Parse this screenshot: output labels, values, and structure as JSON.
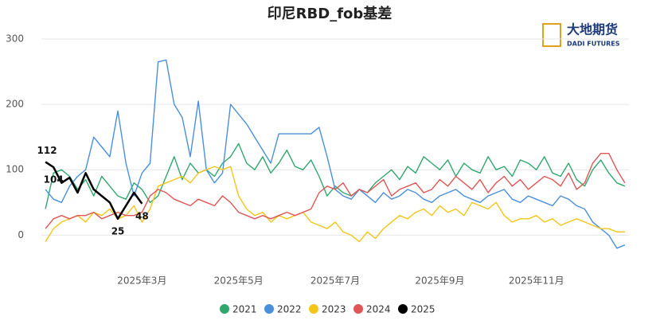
{
  "logo": {
    "name": "大地期货",
    "sub": "DADI FUTURES"
  },
  "chart_data": {
    "type": "line",
    "title": "印尼RBD_fob基差",
    "categories": [
      null,
      null,
      null,
      null,
      null,
      null,
      null,
      null,
      null,
      null,
      null,
      null,
      "2025年3月",
      null,
      null,
      null,
      null,
      null,
      null,
      null,
      null,
      null,
      null,
      null,
      "2025年5月",
      null,
      null,
      null,
      null,
      null,
      null,
      null,
      null,
      null,
      null,
      null,
      "2025年7月",
      null,
      null,
      null,
      null,
      null,
      null,
      null,
      null,
      null,
      null,
      null,
      null,
      "2025年9月",
      null,
      null,
      null,
      null,
      null,
      null,
      null,
      null,
      null,
      null,
      null,
      "2025年11月",
      null,
      null,
      null,
      null,
      null,
      null,
      null,
      null,
      null,
      null,
      null
    ],
    "ylim": [
      -30,
      300
    ],
    "yticks": [
      0,
      100,
      200,
      300
    ],
    "grid": true,
    "legend": "bottom",
    "series": [
      {
        "name": "2021",
        "color": "#2fa86e",
        "values": [
          40,
          95,
          100,
          90,
          70,
          85,
          60,
          90,
          75,
          60,
          55,
          80,
          70,
          50,
          60,
          90,
          120,
          85,
          110,
          95,
          100,
          90,
          110,
          120,
          140,
          110,
          100,
          120,
          95,
          110,
          130,
          105,
          100,
          115,
          90,
          60,
          75,
          65,
          60,
          70,
          65,
          80,
          90,
          100,
          85,
          105,
          95,
          120,
          110,
          100,
          115,
          90,
          110,
          100,
          95,
          120,
          100,
          105,
          90,
          115,
          110,
          100,
          120,
          95,
          90,
          110,
          85,
          75,
          100,
          115,
          95,
          80,
          75
        ]
      },
      {
        "name": "2022",
        "color": "#4a8fdc",
        "values": [
          70,
          55,
          50,
          75,
          90,
          100,
          150,
          135,
          120,
          190,
          110,
          60,
          95,
          110,
          265,
          268,
          200,
          180,
          120,
          205,
          100,
          80,
          95,
          200,
          185,
          170,
          150,
          130,
          110,
          155,
          155,
          155,
          155,
          155,
          165,
          120,
          70,
          60,
          55,
          70,
          60,
          50,
          65,
          55,
          60,
          70,
          65,
          55,
          50,
          60,
          65,
          70,
          60,
          55,
          50,
          60,
          65,
          70,
          55,
          50,
          60,
          55,
          50,
          45,
          60,
          55,
          45,
          40,
          20,
          10,
          0,
          -20,
          -15
        ]
      },
      {
        "name": "2023",
        "color": "#f2c618",
        "values": [
          -10,
          10,
          20,
          25,
          30,
          20,
          35,
          30,
          40,
          25,
          30,
          45,
          20,
          40,
          75,
          80,
          85,
          90,
          80,
          95,
          100,
          105,
          100,
          105,
          60,
          40,
          30,
          35,
          20,
          30,
          25,
          30,
          35,
          20,
          15,
          10,
          20,
          5,
          0,
          -10,
          5,
          -5,
          10,
          20,
          30,
          25,
          35,
          40,
          30,
          45,
          35,
          40,
          30,
          50,
          45,
          40,
          50,
          30,
          20,
          25,
          25,
          30,
          20,
          25,
          15,
          20,
          25,
          20,
          15,
          10,
          10,
          5,
          5
        ]
      },
      {
        "name": "2024",
        "color": "#e05656",
        "values": [
          10,
          25,
          30,
          25,
          30,
          30,
          35,
          25,
          30,
          35,
          30,
          30,
          35,
          60,
          70,
          65,
          55,
          50,
          45,
          55,
          50,
          45,
          60,
          50,
          35,
          30,
          25,
          30,
          25,
          30,
          35,
          30,
          35,
          40,
          65,
          75,
          70,
          80,
          60,
          70,
          65,
          75,
          85,
          60,
          70,
          75,
          80,
          65,
          70,
          85,
          75,
          90,
          80,
          70,
          85,
          65,
          80,
          90,
          75,
          85,
          70,
          80,
          90,
          85,
          75,
          95,
          70,
          80,
          110,
          125,
          125,
          100,
          80
        ]
      },
      {
        "name": "2025",
        "color": "#000000",
        "values": [
          112,
          104,
          80,
          88,
          65,
          95,
          70,
          60,
          50,
          25,
          45,
          65,
          48,
          null,
          null,
          null,
          null,
          null,
          null,
          null,
          null,
          null,
          null,
          null,
          null,
          null,
          null,
          null,
          null,
          null,
          null,
          null,
          null,
          null,
          null,
          null,
          null,
          null,
          null,
          null,
          null,
          null,
          null,
          null,
          null,
          null,
          null,
          null,
          null,
          null,
          null,
          null,
          null,
          null,
          null,
          null,
          null,
          null,
          null,
          null,
          null,
          null,
          null,
          null,
          null,
          null,
          null,
          null,
          null,
          null,
          null,
          null,
          null
        ],
        "value_labels": [
          112,
          104,
          null,
          null,
          null,
          null,
          null,
          null,
          null,
          25,
          null,
          null,
          48,
          null,
          null,
          null,
          null,
          null,
          null,
          null,
          null,
          null,
          null,
          null,
          null,
          null,
          null,
          null,
          null,
          null,
          null,
          null,
          null,
          null,
          null,
          null,
          null,
          null,
          null,
          null,
          null,
          null,
          null,
          null,
          null,
          null,
          null,
          null,
          null,
          null,
          null,
          null,
          null,
          null,
          null,
          null,
          null,
          null,
          null,
          null,
          null,
          null,
          null,
          null,
          null,
          null,
          null,
          null,
          null,
          null,
          null,
          null,
          null
        ]
      }
    ]
  }
}
